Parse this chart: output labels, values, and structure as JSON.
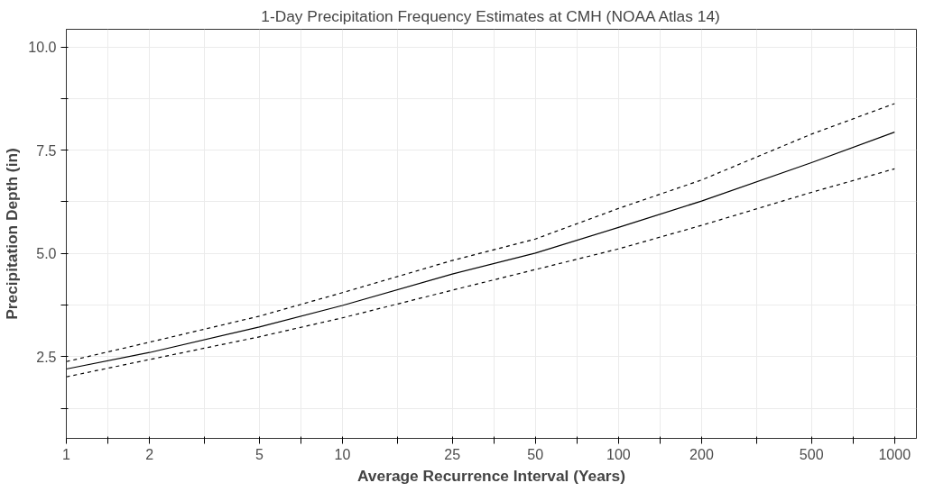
{
  "chart_data": {
    "type": "line",
    "title": "1-Day Precipitation Frequency Estimates at CMH (NOAA Atlas 14)",
    "xlabel": "Average Recurrence Interval (Years)",
    "ylabel": "Precipitation Depth (in)",
    "log": "x",
    "x": [
      1,
      2,
      5,
      10,
      25,
      50,
      100,
      200,
      500,
      1000
    ],
    "series": [
      {
        "color": "#000000",
        "line_style": "solid",
        "values": [
          2.2,
          2.6,
          3.22,
          3.74,
          4.5,
          5.01,
          5.63,
          6.27,
          7.2,
          7.94
        ]
      },
      {
        "color": "#000000",
        "line_style": "dashed",
        "values": [
          2.38,
          2.85,
          3.48,
          4.05,
          4.83,
          5.35,
          6.09,
          6.78,
          7.89,
          8.63
        ]
      },
      {
        "color": "#000000",
        "line_style": "dashed",
        "values": [
          2.01,
          2.43,
          2.98,
          3.44,
          4.11,
          4.61,
          5.11,
          5.68,
          6.48,
          7.05
        ]
      }
    ],
    "xlim": [
      1,
      1200
    ],
    "ylim": [
      0.52,
      10.43
    ],
    "xticks": [
      1,
      {
        "value": 1.414,
        "label": null
      },
      2,
      {
        "value": 3.162,
        "label": null
      },
      5,
      {
        "value": 7.071,
        "label": null
      },
      10,
      {
        "value": 15.81,
        "label": null
      },
      25,
      {
        "value": 35.36,
        "label": null
      },
      50,
      {
        "value": 70.71,
        "label": null
      },
      100,
      {
        "value": 141.4,
        "label": null
      },
      200,
      {
        "value": 316.2,
        "label": null
      },
      500,
      {
        "value": 707.1,
        "label": null
      },
      1000
    ],
    "yticks": [
      {
        "value": 1.25,
        "label": null
      },
      {
        "value": 2.5,
        "label": "2.5"
      },
      {
        "value": 3.75,
        "label": null
      },
      {
        "value": 5.0,
        "label": "5.0"
      },
      {
        "value": 6.25,
        "label": null
      },
      {
        "value": 7.5,
        "label": "7.5"
      },
      {
        "value": 8.75,
        "label": null
      },
      {
        "value": 10.0,
        "label": "10.0"
      }
    ],
    "grid": true
  }
}
